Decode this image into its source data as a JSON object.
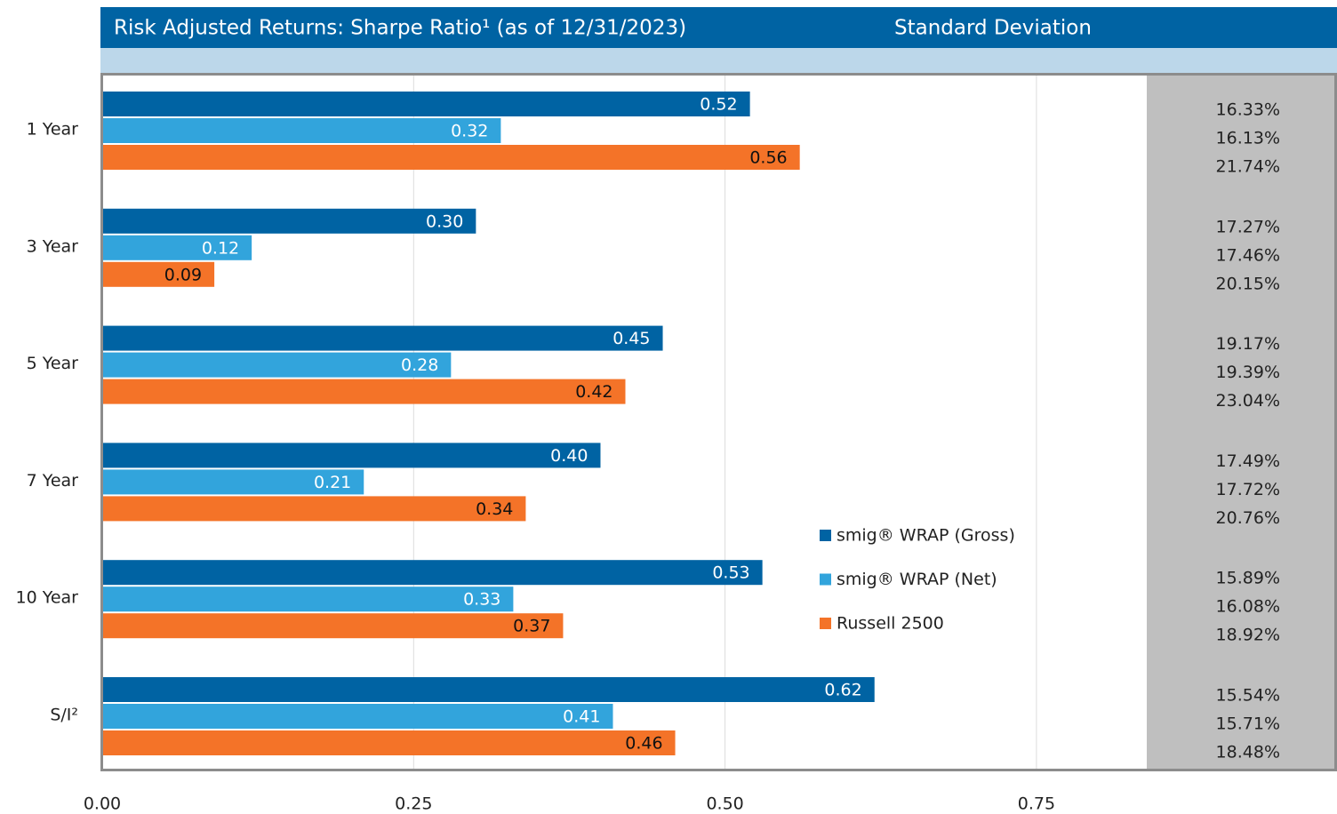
{
  "chart_data": {
    "type": "bar",
    "orientation": "horizontal",
    "title": "Risk Adjusted Returns: Sharpe Ratio¹ (as of 12/31/2023)",
    "categories": [
      "1 Year",
      "3 Year",
      "5 Year",
      "7 Year",
      "10 Year",
      "S/I²"
    ],
    "series": [
      {
        "name": "smig® WRAP (Gross)",
        "color": "#0063a3",
        "values": [
          0.52,
          0.3,
          0.45,
          0.4,
          0.53,
          0.62
        ],
        "value_labels": [
          "0.52",
          "0.30",
          "0.45",
          "0.40",
          "0.53",
          "0.62"
        ]
      },
      {
        "name": "smig® WRAP (Net)",
        "color": "#32a4dc",
        "values": [
          0.32,
          0.12,
          0.28,
          0.21,
          0.33,
          0.41
        ],
        "value_labels": [
          "0.32",
          "0.12",
          "0.28",
          "0.21",
          "0.33",
          "0.41"
        ]
      },
      {
        "name": "Russell 2500",
        "color": "#f47328",
        "values": [
          0.56,
          0.09,
          0.42,
          0.34,
          0.37,
          0.46
        ],
        "value_labels": [
          "0.56",
          "0.09",
          "0.42",
          "0.34",
          "0.37",
          "0.46"
        ]
      }
    ],
    "xlim": [
      0,
      0.84
    ],
    "xticks": [
      {
        "value": 0,
        "label": "0.00"
      },
      {
        "value": 0.25,
        "label": "0.25"
      },
      {
        "value": 0.5,
        "label": "0.50"
      },
      {
        "value": 0.75,
        "label": "0.75"
      }
    ],
    "grid": true,
    "legend": "center-right",
    "std_dev": {
      "title": "Standard Deviation",
      "values": [
        [
          16.33,
          16.13,
          21.74
        ],
        [
          17.27,
          17.46,
          20.15
        ],
        [
          19.17,
          19.39,
          23.04
        ],
        [
          17.49,
          17.72,
          20.76
        ],
        [
          15.89,
          16.08,
          18.92
        ],
        [
          15.54,
          15.71,
          18.48
        ]
      ],
      "value_labels": [
        [
          "16.33%",
          "16.13%",
          "21.74%"
        ],
        [
          "17.27%",
          "17.46%",
          "20.15%"
        ],
        [
          "19.17%",
          "19.39%",
          "23.04%"
        ],
        [
          "17.49%",
          "17.72%",
          "20.76%"
        ],
        [
          "15.89%",
          "16.08%",
          "18.92%"
        ],
        [
          "15.54%",
          "15.71%",
          "18.48%"
        ]
      ]
    }
  }
}
